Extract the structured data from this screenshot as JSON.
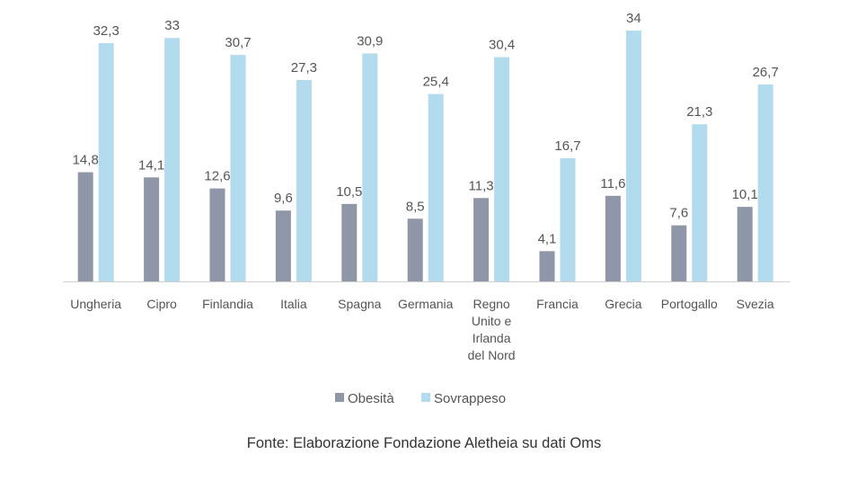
{
  "chart_data": {
    "type": "bar",
    "categories": [
      [
        "Ungheria"
      ],
      [
        "Cipro"
      ],
      [
        "Finlandia"
      ],
      [
        "Italia"
      ],
      [
        "Spagna"
      ],
      [
        "Germania"
      ],
      [
        "Regno",
        "Unito e",
        "Irlanda",
        "del Nord"
      ],
      [
        "Francia"
      ],
      [
        "Grecia"
      ],
      [
        "Portogallo"
      ],
      [
        "Svezia"
      ]
    ],
    "series": [
      {
        "name": "Obesità",
        "color": "#8e96a8",
        "values": [
          14.8,
          14.1,
          12.6,
          9.6,
          10.5,
          8.5,
          11.3,
          4.1,
          11.6,
          7.6,
          10.1
        ],
        "labels": [
          "14,8",
          "14,1",
          "12,6",
          "9,6",
          "10,5",
          "8,5",
          "11,3",
          "4,1",
          "11,6",
          "7,6",
          "10,1"
        ]
      },
      {
        "name": "Sovrappeso",
        "color": "#b3dbee",
        "values": [
          32.3,
          33,
          30.7,
          27.3,
          30.9,
          25.4,
          30.4,
          16.7,
          34,
          21.3,
          26.7
        ],
        "labels": [
          "32,3",
          "33",
          "30,7",
          "27,3",
          "30,9",
          "25,4",
          "30,4",
          "16,7",
          "34",
          "21,3",
          "26,7"
        ]
      }
    ],
    "ylim": [
      0,
      34
    ],
    "grid": false,
    "legend": "bottom",
    "source": "Fonte: Elaborazione Fondazione Aletheia su dati Oms"
  }
}
